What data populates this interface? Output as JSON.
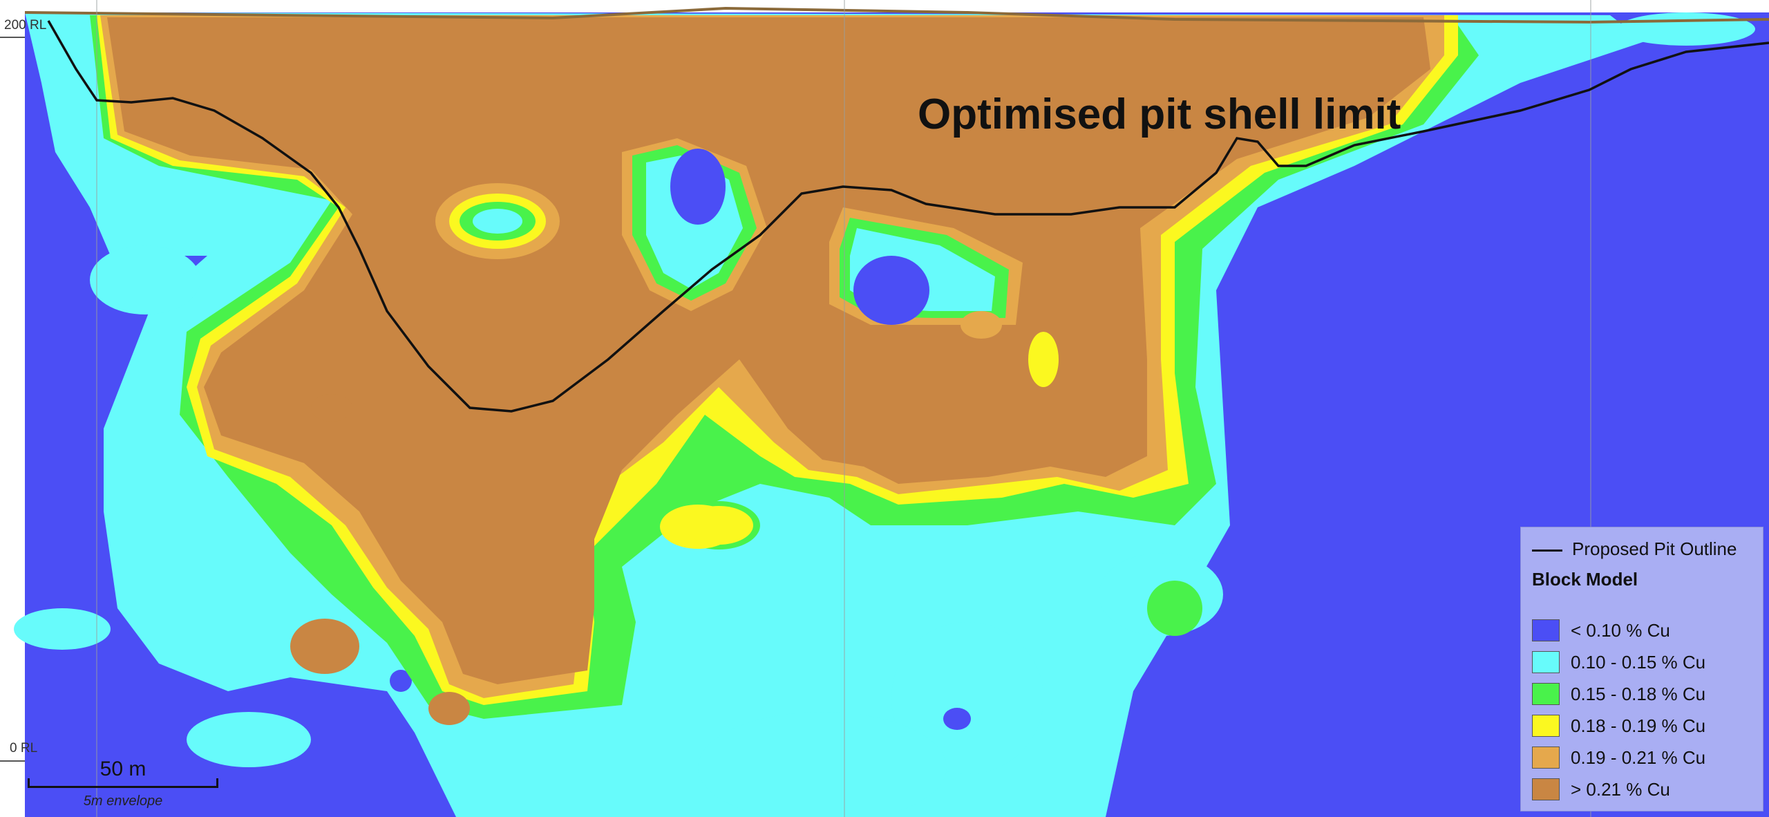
{
  "map": {
    "rl_labels": [
      "200 RL",
      "0 RL"
    ],
    "headline": "Optimised pit shell limit",
    "scale_bar": {
      "distance": "50 m",
      "note": "5m envelope"
    },
    "colors": {
      "lt_0_10": "#4b4ef5",
      "r_0_10_0_15": "#67fbfb",
      "r_0_15_0_18": "#49f24b",
      "r_0_18_0_19": "#fbf820",
      "r_0_19_0_21": "#e5a84c",
      "gt_0_21": "#c98643",
      "pit_outline": "#111111",
      "topography": "#8b6a3a"
    }
  },
  "legend": {
    "line_label": "Proposed Pit Outline",
    "title": "Block Model",
    "items": [
      {
        "label": "< 0.10 % Cu",
        "color": "#4b4ef5"
      },
      {
        "label": "0.10 - 0.15 % Cu",
        "color": "#67fbfb"
      },
      {
        "label": "0.15 - 0.18 % Cu",
        "color": "#49f24b"
      },
      {
        "label": "0.18 - 0.19 % Cu",
        "color": "#fbf820"
      },
      {
        "label": "0.19 - 0.21 % Cu",
        "color": "#e5a84c"
      },
      {
        "label": "> 0.21 % Cu",
        "color": "#c98643"
      }
    ]
  }
}
